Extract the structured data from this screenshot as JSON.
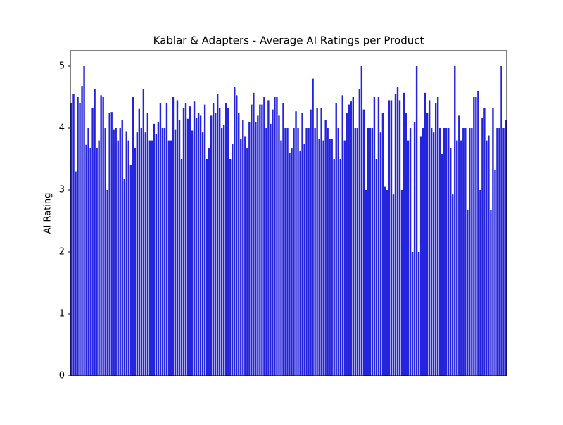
{
  "chart_data": {
    "type": "bar",
    "title": "Kablar & Adapters - Average AI Ratings per Product",
    "ylabel": "AI Rating",
    "color": "#2424dd",
    "values": [
      4.4,
      4.55,
      3.3,
      4.5,
      4.4,
      4.68,
      5.0,
      3.73,
      4.0,
      3.68,
      4.33,
      4.63,
      3.68,
      3.8,
      4.53,
      4.5,
      4.0,
      3.0,
      4.25,
      4.26,
      3.97,
      4.0,
      3.8,
      4.0,
      4.13,
      3.18,
      3.95,
      3.8,
      3.4,
      4.5,
      3.68,
      3.93,
      4.31,
      4.0,
      4.63,
      3.93,
      4.25,
      3.8,
      3.8,
      4.07,
      3.9,
      4.1,
      4.4,
      4.0,
      4.0,
      4.4,
      3.8,
      3.8,
      4.5,
      3.97,
      4.45,
      4.13,
      3.5,
      4.33,
      4.4,
      4.15,
      4.35,
      3.96,
      4.43,
      4.17,
      4.24,
      4.2,
      3.93,
      4.38,
      3.5,
      3.67,
      4.2,
      4.4,
      4.25,
      4.55,
      4.33,
      4.0,
      4.05,
      4.4,
      4.33,
      3.5,
      3.75,
      4.67,
      4.53,
      4.25,
      3.83,
      4.13,
      3.87,
      3.67,
      4.1,
      4.38,
      4.57,
      4.1,
      4.2,
      4.38,
      4.38,
      4.5,
      4.0,
      4.45,
      4.07,
      4.3,
      4.5,
      4.5,
      4.2,
      3.8,
      4.4,
      4.0,
      4.0,
      3.6,
      3.67,
      4.0,
      4.27,
      4.0,
      3.63,
      4.25,
      3.75,
      4.0,
      4.0,
      4.3,
      4.8,
      4.0,
      4.33,
      3.83,
      4.33,
      3.8,
      4.13,
      4.0,
      3.83,
      3.83,
      3.5,
      4.4,
      4.0,
      3.5,
      4.53,
      3.8,
      4.25,
      4.38,
      4.43,
      4.5,
      4.0,
      4.0,
      4.63,
      5.0,
      4.3,
      3.0,
      4.0,
      4.0,
      4.0,
      4.5,
      3.5,
      4.5,
      3.93,
      4.25,
      3.05,
      3.0,
      4.45,
      4.45,
      2.93,
      4.55,
      4.67,
      4.45,
      3.0,
      4.57,
      4.25,
      3.8,
      4.0,
      2.0,
      4.1,
      5.0,
      2.0,
      3.87,
      4.0,
      4.57,
      4.25,
      4.45,
      4.0,
      3.93,
      4.4,
      4.5,
      4.0,
      3.58,
      4.0,
      4.0,
      4.0,
      3.67,
      2.93,
      5.0,
      3.8,
      4.2,
      3.8,
      4.0,
      4.0,
      2.67,
      4.0,
      4.0,
      4.5,
      4.5,
      4.6,
      3.0,
      4.17,
      4.33,
      3.8,
      3.88,
      2.67,
      4.33,
      3.33,
      4.0,
      4.0,
      5.0,
      4.0,
      4.13
    ],
    "ylim": [
      0,
      5.25
    ],
    "yticks": [
      0,
      1,
      2,
      3,
      4,
      5
    ],
    "grid": false
  }
}
